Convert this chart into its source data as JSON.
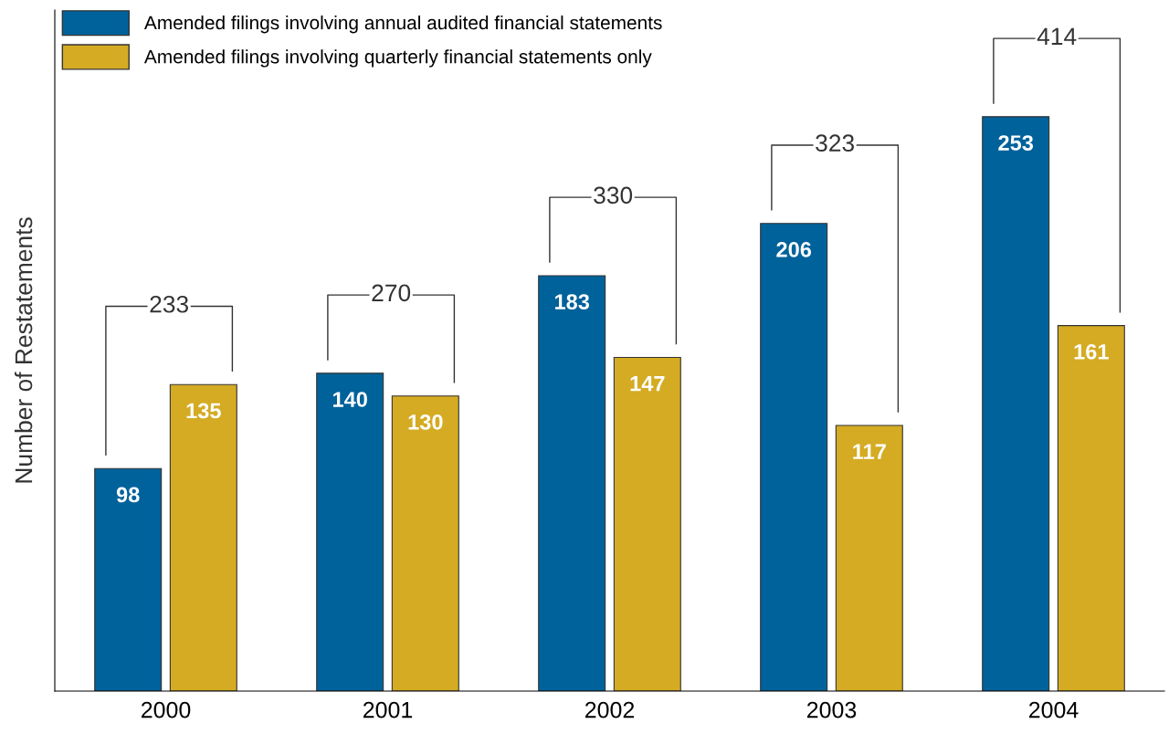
{
  "chart_data": {
    "type": "bar",
    "ylabel": "Number of Restatements",
    "categories": [
      "2000",
      "2001",
      "2002",
      "2003",
      "2004"
    ],
    "series": [
      {
        "name": "Amended filings involving annual audited financial statements",
        "color": "#00629b",
        "values": [
          98,
          140,
          183,
          206,
          253
        ]
      },
      {
        "name": "Amended filings involving quarterly financial statements only",
        "color": "#d4ab23",
        "values": [
          135,
          130,
          147,
          117,
          161
        ]
      }
    ],
    "totals": [
      "233",
      "270",
      "330",
      "323",
      "414"
    ],
    "data_labels": true,
    "ylim": [
      0,
      300
    ],
    "tick_labels": "x",
    "grid": false,
    "legend": "top left"
  }
}
